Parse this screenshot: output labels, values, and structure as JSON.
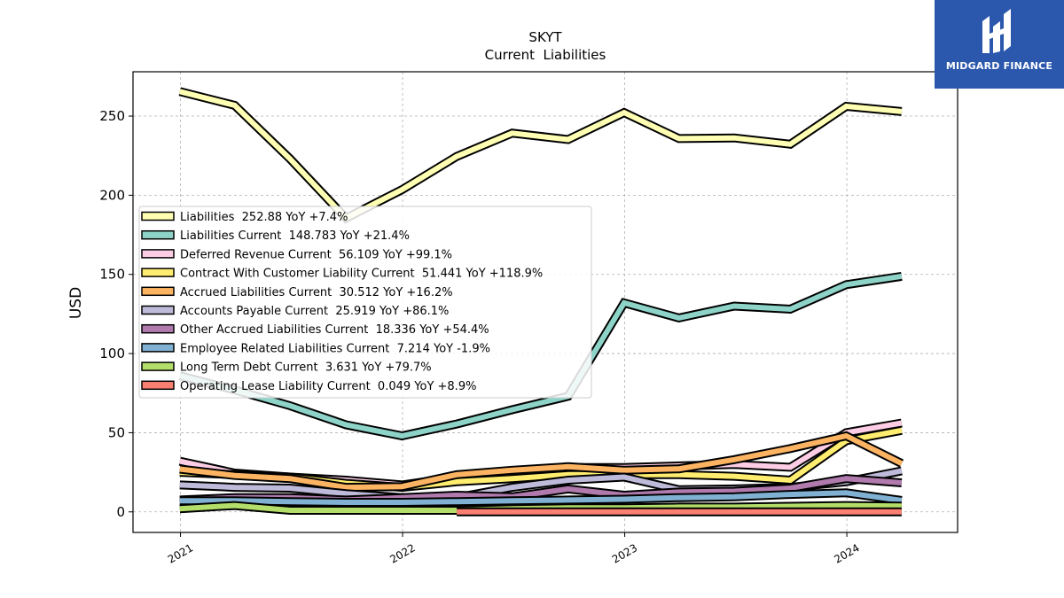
{
  "chart_data": {
    "type": "line",
    "title": "SKYT",
    "subtitle": "Current  Liabilities",
    "xlabel": "",
    "ylabel": "USD",
    "xlim": [
      "2020-10-15",
      "2024-07-01"
    ],
    "ylim": [
      -13,
      278
    ],
    "x_ticks": [
      "2021",
      "2022",
      "2023",
      "2024"
    ],
    "y_ticks": [
      0,
      50,
      100,
      150,
      200,
      250
    ],
    "grid": true,
    "legend_position": "center-left",
    "x": [
      "2020-12-31",
      "2021-03-31",
      "2021-06-30",
      "2021-09-30",
      "2021-12-31",
      "2022-03-31",
      "2022-06-30",
      "2022-09-30",
      "2022-12-31",
      "2023-03-31",
      "2023-06-30",
      "2023-09-30",
      "2023-12-31",
      "2024-03-31"
    ],
    "series": [
      {
        "name": "Liabilities  252.88 YoY +7.4%",
        "color": "#ffffb3",
        "values": [
          265.5,
          256.8,
          223,
          185.5,
          203.5,
          224.5,
          239.2,
          235.2,
          252.2,
          235.8,
          236.2,
          232.2,
          256.2,
          252.88
        ]
      },
      {
        "name": "Liabilities Current  148.783 YoY +21.4%",
        "color": "#8dd3c7",
        "values": [
          86,
          77,
          67,
          55,
          48,
          55.5,
          64.5,
          73,
          132,
          122.5,
          130,
          128,
          143.5,
          148.783
        ]
      },
      {
        "name": "Deferred Revenue Current  56.109 YoY +99.1%",
        "color": "#fccde5",
        "values": [
          32,
          24.5,
          22,
          20,
          17,
          22,
          26,
          28,
          28,
          29,
          30,
          28.2,
          50,
          56.109
        ]
      },
      {
        "name": "Contract With Customer Liability Current  51.441 YoY +118.9%",
        "color": "#ffed6f",
        "values": [
          25,
          23.5,
          22,
          18,
          15.5,
          19,
          21,
          23.5,
          23.5,
          23.5,
          22.5,
          20,
          45,
          51.441
        ]
      },
      {
        "name": "Accrued Liabilities Current  30.512 YoY +16.2%",
        "color": "#fdb462",
        "values": [
          27,
          23,
          21,
          15.5,
          16,
          23.5,
          26.3,
          28.5,
          26.3,
          27.2,
          33,
          40,
          48,
          30.512
        ]
      },
      {
        "name": "Accounts Payable Current  25.919 YoY +86.1%",
        "color": "#bebada",
        "values": [
          17,
          15.5,
          15,
          11.5,
          9,
          9,
          15.5,
          20,
          22,
          14,
          14.5,
          15.5,
          19,
          25.919
        ]
      },
      {
        "name": "Other Accrued Liabilities Current  18.336 YoY +54.4%",
        "color": "#b07aad",
        "values": [
          7.5,
          9,
          9,
          7.5,
          9,
          10.5,
          9.5,
          14.5,
          10.5,
          12.5,
          13,
          15,
          21,
          18.336
        ]
      },
      {
        "name": "Employee Related Liabilities Current  7.214 YoY -1.9%",
        "color": "#80b1d3",
        "values": [
          7,
          7,
          6.5,
          6,
          6,
          6.5,
          7,
          7.5,
          8,
          9,
          9.5,
          11,
          12,
          7.214
        ]
      },
      {
        "name": "Long Term Debt Current  3.631 YoY +79.7%",
        "color": "#b3de69",
        "values": [
          2,
          4,
          1,
          1,
          1,
          1,
          2,
          2.5,
          2.5,
          3,
          3,
          3.5,
          4,
          3.631
        ]
      },
      {
        "name": "Operating Lease Liability Current  0.049 YoY +8.9%",
        "color": "#fb8072",
        "values": [
          null,
          null,
          null,
          null,
          null,
          0.05,
          0.05,
          0.05,
          0.05,
          0.05,
          0.05,
          0.05,
          0.05,
          0.049
        ]
      }
    ]
  },
  "logo": {
    "text": "MIDGARD FINANCE",
    "color": "#2b58ad"
  }
}
